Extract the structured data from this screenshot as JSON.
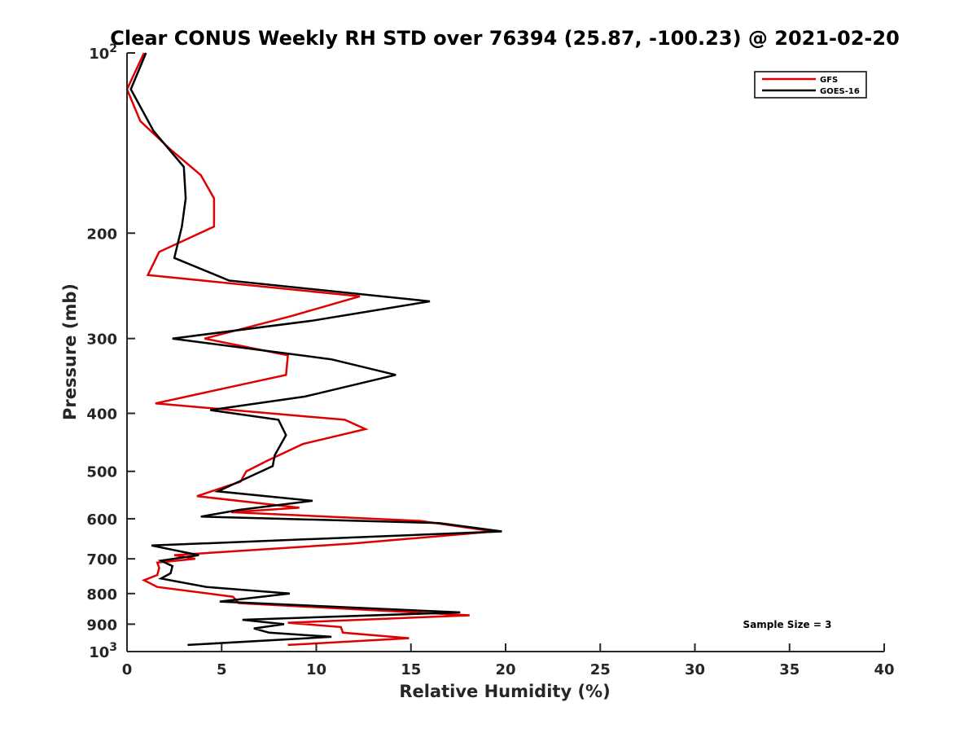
{
  "chart_data": {
    "type": "line",
    "title": "Clear CONUS Weekly RH STD over 76394 (25.87, -100.23) @ 2021-02-20",
    "xlabel": "Relative Humidity (%)",
    "ylabel": "Pressure (mb)",
    "xlim": [
      0,
      40
    ],
    "ylim": [
      100,
      1000
    ],
    "yscale": "log",
    "y_reversed": true,
    "x_ticks": [
      "0",
      "5",
      "10",
      "15",
      "20",
      "25",
      "30",
      "35",
      "40"
    ],
    "y_ticks": [
      {
        "value": 100,
        "base": "10",
        "exp": "2"
      },
      {
        "value": 200,
        "label": "200"
      },
      {
        "value": 300,
        "label": "300"
      },
      {
        "value": 400,
        "label": "400"
      },
      {
        "value": 500,
        "label": "500"
      },
      {
        "value": 600,
        "label": "600"
      },
      {
        "value": 700,
        "label": "700"
      },
      {
        "value": 800,
        "label": "800"
      },
      {
        "value": 900,
        "label": "900"
      },
      {
        "value": 1000,
        "base": "10",
        "exp": "3"
      }
    ],
    "legend_position": "top-right",
    "annotation": "Sample Size = 3",
    "series": [
      {
        "name": "GFS",
        "color": "#e00000",
        "points": [
          [
            0.9,
            100
          ],
          [
            0.0,
            115
          ],
          [
            0.7,
            130
          ],
          [
            2.3,
            145
          ],
          [
            3.9,
            160
          ],
          [
            4.6,
            175
          ],
          [
            4.6,
            195
          ],
          [
            1.7,
            215
          ],
          [
            1.1,
            235
          ],
          [
            12.3,
            255
          ],
          [
            8.7,
            275
          ],
          [
            4.1,
            300
          ],
          [
            8.5,
            320
          ],
          [
            8.4,
            345
          ],
          [
            1.5,
            385
          ],
          [
            11.5,
            410
          ],
          [
            12.6,
            425
          ],
          [
            9.3,
            450
          ],
          [
            7.4,
            480
          ],
          [
            6.3,
            500
          ],
          [
            6.0,
            520
          ],
          [
            3.7,
            550
          ],
          [
            9.1,
            575
          ],
          [
            5.5,
            585
          ],
          [
            15.5,
            605
          ],
          [
            19.4,
            630
          ],
          [
            11.9,
            660
          ],
          [
            2.5,
            690
          ],
          [
            3.6,
            700
          ],
          [
            1.6,
            710
          ],
          [
            1.7,
            725
          ],
          [
            1.6,
            745
          ],
          [
            0.9,
            760
          ],
          [
            1.6,
            780
          ],
          [
            5.6,
            810
          ],
          [
            5.9,
            830
          ],
          [
            18.1,
            870
          ],
          [
            8.5,
            895
          ],
          [
            11.3,
            910
          ],
          [
            11.4,
            930
          ],
          [
            14.9,
            950
          ],
          [
            8.5,
            975
          ]
        ]
      },
      {
        "name": "GOES-16",
        "color": "#000000",
        "points": [
          [
            1.0,
            100
          ],
          [
            0.2,
            115
          ],
          [
            1.4,
            135
          ],
          [
            3.0,
            155
          ],
          [
            3.1,
            175
          ],
          [
            2.9,
            195
          ],
          [
            2.5,
            220
          ],
          [
            5.4,
            240
          ],
          [
            16.0,
            260
          ],
          [
            9.8,
            280
          ],
          [
            2.4,
            300
          ],
          [
            10.8,
            325
          ],
          [
            14.2,
            345
          ],
          [
            9.4,
            375
          ],
          [
            4.4,
            395
          ],
          [
            8.0,
            410
          ],
          [
            8.4,
            435
          ],
          [
            7.8,
            470
          ],
          [
            7.7,
            490
          ],
          [
            6.5,
            510
          ],
          [
            4.8,
            540
          ],
          [
            9.8,
            560
          ],
          [
            5.9,
            580
          ],
          [
            3.9,
            595
          ],
          [
            16.5,
            610
          ],
          [
            19.8,
            630
          ],
          [
            1.3,
            665
          ],
          [
            3.8,
            690
          ],
          [
            1.8,
            705
          ],
          [
            2.4,
            720
          ],
          [
            2.3,
            740
          ],
          [
            1.8,
            755
          ],
          [
            4.2,
            780
          ],
          [
            8.6,
            800
          ],
          [
            4.9,
            825
          ],
          [
            17.6,
            860
          ],
          [
            6.1,
            885
          ],
          [
            8.3,
            900
          ],
          [
            6.7,
            915
          ],
          [
            7.5,
            930
          ],
          [
            10.8,
            945
          ],
          [
            3.2,
            975
          ]
        ]
      }
    ]
  }
}
